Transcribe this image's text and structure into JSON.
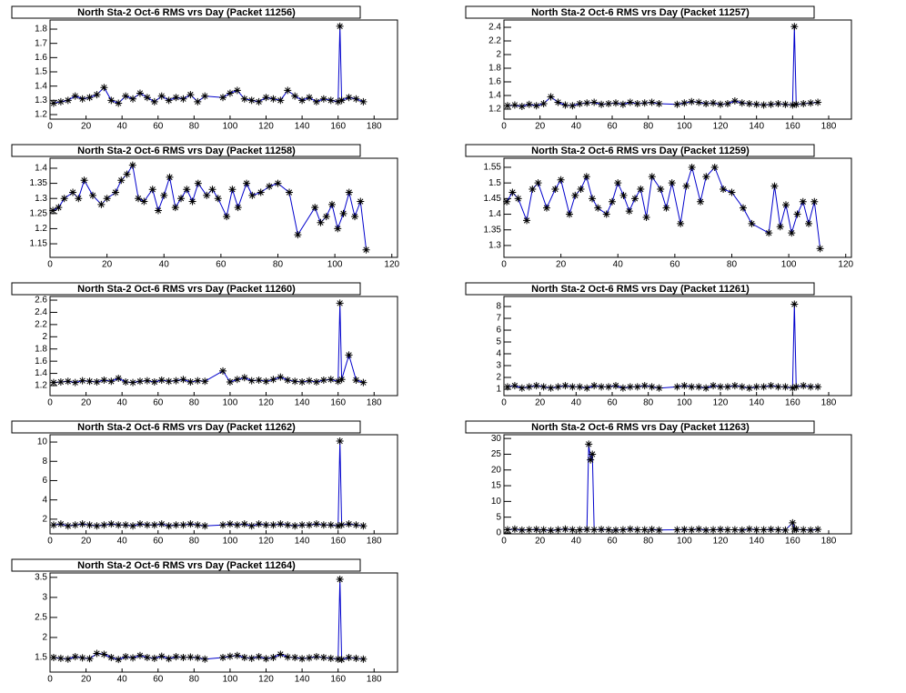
{
  "chart_data": [
    {
      "type": "line",
      "title": "North Sta-2 Oct-6 RMS vrs Day (Packet 11256)",
      "color": "#0000cc",
      "x": [
        2,
        6,
        10,
        14,
        18,
        22,
        26,
        30,
        34,
        38,
        42,
        46,
        50,
        54,
        58,
        62,
        66,
        70,
        74,
        78,
        82,
        86,
        96,
        100,
        104,
        108,
        112,
        116,
        120,
        124,
        128,
        132,
        136,
        140,
        144,
        148,
        152,
        156,
        160,
        161,
        162,
        166,
        170,
        174
      ],
      "values": [
        1.28,
        1.29,
        1.3,
        1.33,
        1.31,
        1.32,
        1.34,
        1.39,
        1.3,
        1.28,
        1.33,
        1.31,
        1.35,
        1.32,
        1.29,
        1.33,
        1.3,
        1.32,
        1.31,
        1.34,
        1.29,
        1.33,
        1.32,
        1.35,
        1.37,
        1.31,
        1.3,
        1.29,
        1.32,
        1.31,
        1.3,
        1.37,
        1.33,
        1.3,
        1.32,
        1.29,
        1.31,
        1.3,
        1.29,
        1.82,
        1.3,
        1.32,
        1.31,
        1.29
      ],
      "xlim": [
        0,
        193
      ],
      "xticks": [
        0,
        20,
        40,
        60,
        80,
        100,
        120,
        140,
        160,
        180
      ],
      "ylim": [
        1.168,
        1.864
      ],
      "yticks": [
        1.2,
        1.3,
        1.4,
        1.5,
        1.6,
        1.7,
        1.8
      ]
    },
    {
      "type": "line",
      "title": "North Sta-2 Oct-6 RMS vrs Day (Packet 11257)",
      "color": "#0000cc",
      "x": [
        2,
        6,
        10,
        14,
        18,
        22,
        26,
        30,
        34,
        38,
        42,
        46,
        50,
        54,
        58,
        62,
        66,
        70,
        74,
        78,
        82,
        86,
        96,
        100,
        104,
        108,
        112,
        116,
        120,
        124,
        128,
        132,
        136,
        140,
        144,
        148,
        152,
        156,
        160,
        161,
        162,
        166,
        170,
        174
      ],
      "values": [
        1.25,
        1.26,
        1.24,
        1.27,
        1.25,
        1.28,
        1.38,
        1.3,
        1.26,
        1.25,
        1.28,
        1.29,
        1.3,
        1.27,
        1.28,
        1.29,
        1.27,
        1.3,
        1.28,
        1.29,
        1.3,
        1.28,
        1.27,
        1.29,
        1.31,
        1.3,
        1.28,
        1.29,
        1.27,
        1.28,
        1.32,
        1.29,
        1.28,
        1.27,
        1.26,
        1.27,
        1.28,
        1.27,
        1.26,
        2.41,
        1.27,
        1.28,
        1.29,
        1.3
      ],
      "xlim": [
        0,
        192.6
      ],
      "xticks": [
        0,
        20,
        40,
        60,
        80,
        100,
        120,
        140,
        160,
        180
      ],
      "ylim": [
        1.053,
        2.507
      ],
      "yticks": [
        1.2,
        1.4,
        1.6,
        1.8,
        2,
        2.2,
        2.4
      ]
    },
    {
      "type": "line",
      "title": "North Sta-2 Oct-6 RMS vrs Day (Packet 11258)",
      "color": "#0000cc",
      "x": [
        1,
        3,
        5,
        8,
        10,
        12,
        15,
        18,
        20,
        23,
        25,
        27,
        29,
        31,
        33,
        36,
        38,
        40,
        42,
        44,
        46,
        48,
        50,
        52,
        55,
        57,
        59,
        62,
        64,
        66,
        69,
        71,
        74,
        77,
        80,
        84,
        87,
        93,
        95,
        97,
        99,
        101,
        103,
        105,
        107,
        109,
        111
      ],
      "values": [
        1.26,
        1.27,
        1.3,
        1.32,
        1.3,
        1.36,
        1.31,
        1.28,
        1.3,
        1.32,
        1.36,
        1.38,
        1.41,
        1.3,
        1.29,
        1.33,
        1.26,
        1.31,
        1.37,
        1.27,
        1.3,
        1.33,
        1.29,
        1.35,
        1.31,
        1.33,
        1.3,
        1.24,
        1.33,
        1.27,
        1.35,
        1.31,
        1.32,
        1.34,
        1.35,
        1.32,
        1.18,
        1.27,
        1.22,
        1.24,
        1.28,
        1.2,
        1.25,
        1.32,
        1.24,
        1.29,
        1.13
      ],
      "xlim": [
        0,
        122
      ],
      "xticks": [
        0,
        20,
        40,
        60,
        80,
        100,
        120
      ],
      "ylim": [
        1.105,
        1.433
      ],
      "yticks": [
        1.15,
        1.2,
        1.25,
        1.3,
        1.35,
        1.4
      ]
    },
    {
      "type": "line",
      "title": "North Sta-2 Oct-6 RMS vrs Day (Packet 11259)",
      "color": "#0000cc",
      "x": [
        1,
        3,
        5,
        8,
        10,
        12,
        15,
        18,
        20,
        23,
        25,
        27,
        29,
        31,
        33,
        36,
        38,
        40,
        42,
        44,
        46,
        48,
        50,
        52,
        55,
        57,
        59,
        62,
        64,
        66,
        69,
        71,
        74,
        77,
        80,
        84,
        87,
        93,
        95,
        97,
        99,
        101,
        103,
        105,
        107,
        109,
        111
      ],
      "values": [
        1.44,
        1.47,
        1.45,
        1.38,
        1.48,
        1.5,
        1.42,
        1.48,
        1.51,
        1.4,
        1.46,
        1.48,
        1.52,
        1.45,
        1.42,
        1.4,
        1.44,
        1.5,
        1.46,
        1.41,
        1.45,
        1.48,
        1.39,
        1.52,
        1.48,
        1.42,
        1.5,
        1.37,
        1.49,
        1.55,
        1.44,
        1.52,
        1.55,
        1.48,
        1.47,
        1.42,
        1.37,
        1.34,
        1.49,
        1.36,
        1.43,
        1.34,
        1.4,
        1.44,
        1.37,
        1.44,
        1.29
      ],
      "xlim": [
        0,
        122
      ],
      "xticks": [
        0,
        20,
        40,
        60,
        80,
        100,
        120
      ],
      "ylim": [
        1.262,
        1.579
      ],
      "yticks": [
        1.3,
        1.35,
        1.4,
        1.45,
        1.5,
        1.55
      ]
    },
    {
      "type": "line",
      "title": "North Sta-2 Oct-6 RMS vrs Day (Packet 11260)",
      "color": "#0000cc",
      "x": [
        2,
        6,
        10,
        14,
        18,
        22,
        26,
        30,
        34,
        38,
        42,
        46,
        50,
        54,
        58,
        62,
        66,
        70,
        74,
        78,
        82,
        86,
        96,
        100,
        104,
        108,
        112,
        116,
        120,
        124,
        128,
        132,
        136,
        140,
        144,
        148,
        152,
        156,
        160,
        161,
        162,
        166,
        170,
        174
      ],
      "values": [
        1.25,
        1.26,
        1.27,
        1.25,
        1.28,
        1.27,
        1.26,
        1.29,
        1.27,
        1.32,
        1.26,
        1.25,
        1.27,
        1.28,
        1.26,
        1.29,
        1.27,
        1.28,
        1.3,
        1.26,
        1.28,
        1.27,
        1.44,
        1.26,
        1.3,
        1.33,
        1.28,
        1.29,
        1.27,
        1.3,
        1.34,
        1.29,
        1.27,
        1.26,
        1.28,
        1.26,
        1.29,
        1.3,
        1.27,
        2.55,
        1.3,
        1.7,
        1.29,
        1.25
      ],
      "xlim": [
        0,
        193
      ],
      "xticks": [
        0,
        20,
        40,
        60,
        80,
        100,
        120,
        140,
        160,
        180
      ],
      "ylim": [
        1.036,
        2.66
      ],
      "yticks": [
        1.2,
        1.4,
        1.6,
        1.8,
        2,
        2.2,
        2.4,
        2.6
      ]
    },
    {
      "type": "line",
      "title": "North Sta-2 Oct-6 RMS vrs Day (Packet 11261)",
      "color": "#0000cc",
      "x": [
        2,
        6,
        10,
        14,
        18,
        22,
        26,
        30,
        34,
        38,
        42,
        46,
        50,
        54,
        58,
        62,
        66,
        70,
        74,
        78,
        82,
        86,
        96,
        100,
        104,
        108,
        112,
        116,
        120,
        124,
        128,
        132,
        136,
        140,
        144,
        148,
        152,
        156,
        160,
        161,
        162,
        166,
        170,
        174
      ],
      "values": [
        1.2,
        1.3,
        1.1,
        1.2,
        1.3,
        1.2,
        1.1,
        1.2,
        1.3,
        1.2,
        1.2,
        1.1,
        1.3,
        1.2,
        1.2,
        1.3,
        1.1,
        1.2,
        1.2,
        1.3,
        1.2,
        1.1,
        1.2,
        1.3,
        1.2,
        1.2,
        1.1,
        1.3,
        1.2,
        1.2,
        1.3,
        1.2,
        1.1,
        1.2,
        1.2,
        1.3,
        1.2,
        1.2,
        1.1,
        8.2,
        1.2,
        1.3,
        1.2,
        1.2
      ],
      "xlim": [
        0,
        192.6
      ],
      "xticks": [
        0,
        20,
        40,
        60,
        80,
        100,
        120,
        140,
        160,
        180
      ],
      "ylim": [
        0.46,
        8.85
      ],
      "yticks": [
        1,
        2,
        3,
        4,
        5,
        6,
        7,
        8
      ]
    },
    {
      "type": "line",
      "title": "North Sta-2 Oct-6 RMS vrs Day (Packet 11262)",
      "color": "#0000cc",
      "x": [
        2,
        6,
        10,
        14,
        18,
        22,
        26,
        30,
        34,
        38,
        42,
        46,
        50,
        54,
        58,
        62,
        66,
        70,
        74,
        78,
        82,
        86,
        96,
        100,
        104,
        108,
        112,
        116,
        120,
        124,
        128,
        132,
        136,
        140,
        144,
        148,
        152,
        156,
        160,
        161,
        162,
        166,
        170,
        174
      ],
      "values": [
        1.4,
        1.5,
        1.3,
        1.4,
        1.5,
        1.4,
        1.3,
        1.4,
        1.5,
        1.4,
        1.4,
        1.3,
        1.5,
        1.4,
        1.4,
        1.5,
        1.3,
        1.4,
        1.4,
        1.5,
        1.4,
        1.3,
        1.4,
        1.5,
        1.4,
        1.5,
        1.3,
        1.5,
        1.4,
        1.4,
        1.5,
        1.4,
        1.3,
        1.4,
        1.4,
        1.5,
        1.4,
        1.4,
        1.3,
        10.1,
        1.4,
        1.5,
        1.4,
        1.3
      ],
      "xlim": [
        0,
        193
      ],
      "xticks": [
        0,
        20,
        40,
        60,
        80,
        100,
        120,
        140,
        160,
        180
      ],
      "ylim": [
        0.48,
        10.76
      ],
      "yticks": [
        2,
        4,
        6,
        8,
        10
      ]
    },
    {
      "type": "line",
      "title": "North Sta-2 Oct-6 RMS vrs Day (Packet 11263)",
      "color": "#0000cc",
      "x": [
        2,
        6,
        10,
        14,
        18,
        22,
        26,
        30,
        34,
        38,
        42,
        46,
        47,
        48,
        49,
        50,
        54,
        58,
        62,
        66,
        70,
        74,
        78,
        82,
        86,
        96,
        100,
        104,
        108,
        112,
        116,
        120,
        124,
        128,
        132,
        136,
        140,
        144,
        148,
        152,
        156,
        160,
        161,
        162,
        166,
        170,
        174
      ],
      "values": [
        1,
        1.2,
        0.9,
        1,
        1.1,
        1,
        0.8,
        1,
        1.2,
        1,
        1,
        1.1,
        28.2,
        23.2,
        25,
        1,
        1.1,
        1,
        0.9,
        1,
        1.2,
        1,
        1,
        1.1,
        0.9,
        1,
        1.1,
        1,
        1.2,
        0.9,
        1,
        1.1,
        1,
        1,
        0.9,
        1.2,
        1,
        1,
        1.1,
        1,
        0.9,
        3.2,
        1.2,
        1.1,
        1,
        0.9,
        1.1
      ],
      "xlim": [
        0,
        192.6
      ],
      "xticks": [
        0,
        20,
        40,
        60,
        80,
        100,
        120,
        140,
        160,
        180
      ],
      "ylim": [
        -0.3,
        31.2
      ],
      "yticks": [
        0,
        5,
        10,
        15,
        20,
        25,
        30
      ]
    },
    {
      "type": "line",
      "title": "North Sta-2 Oct-6 RMS vrs Day (Packet 11264)",
      "color": "#0000cc",
      "x": [
        2,
        6,
        10,
        14,
        18,
        22,
        26,
        30,
        34,
        38,
        42,
        46,
        50,
        54,
        58,
        62,
        66,
        70,
        74,
        78,
        82,
        86,
        96,
        100,
        104,
        108,
        112,
        116,
        120,
        124,
        128,
        132,
        136,
        140,
        144,
        148,
        152,
        156,
        160,
        161,
        162,
        166,
        170,
        174
      ],
      "values": [
        1.5,
        1.48,
        1.46,
        1.52,
        1.49,
        1.47,
        1.6,
        1.58,
        1.5,
        1.45,
        1.52,
        1.49,
        1.55,
        1.5,
        1.48,
        1.53,
        1.47,
        1.52,
        1.5,
        1.51,
        1.49,
        1.46,
        1.5,
        1.53,
        1.55,
        1.5,
        1.48,
        1.52,
        1.47,
        1.5,
        1.58,
        1.51,
        1.5,
        1.47,
        1.49,
        1.52,
        1.5,
        1.48,
        1.46,
        3.45,
        1.45,
        1.5,
        1.48,
        1.46
      ],
      "xlim": [
        0,
        193
      ],
      "xticks": [
        0,
        20,
        40,
        60,
        80,
        100,
        120,
        140,
        160,
        180
      ],
      "ylim": [
        1.136,
        3.61
      ],
      "yticks": [
        1.5,
        2,
        2.5,
        3,
        3.5
      ]
    }
  ]
}
